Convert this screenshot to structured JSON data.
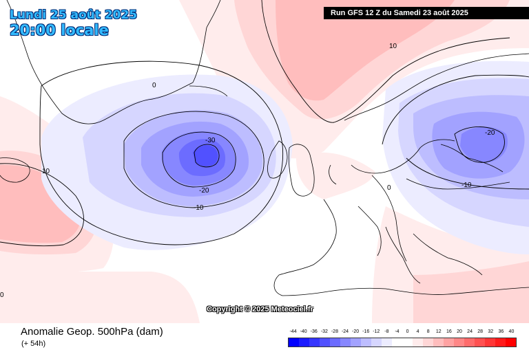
{
  "header": {
    "date_line": "Lundi 25 août 2025",
    "time_line": "20:00 locale",
    "run_banner": "Run GFS 12 Z du Samedi 23 août 2025"
  },
  "copyright": "Copyright © 2025 Meteociel.fr",
  "footer": {
    "parameter_title": "Anomalie Geop. 500hPa (dam)",
    "lead_time": "(+ 54h)"
  },
  "contour_labels": [
    {
      "id": "contour-label-10-north",
      "text": "10"
    },
    {
      "id": "contour-label-0-greenland",
      "text": "0"
    },
    {
      "id": "contour-label-minus30",
      "text": "-30"
    },
    {
      "id": "contour-label-minus20-atlantic",
      "text": "-20"
    },
    {
      "id": "contour-label-minus10-atlantic",
      "text": "-10"
    },
    {
      "id": "contour-label-10-west",
      "text": "10"
    },
    {
      "id": "contour-label-minus20-russia",
      "text": "-20"
    },
    {
      "id": "contour-label-minus10-russia",
      "text": "-10"
    },
    {
      "id": "contour-label-0-europe",
      "text": "0"
    },
    {
      "id": "contour-label-0-left-edge",
      "text": "0"
    }
  ],
  "color_scale": {
    "labels": [
      "-44",
      "-40",
      "-36",
      "-32",
      "-28",
      "-24",
      "-20",
      "-16",
      "-12",
      "-8",
      "-4",
      "0",
      "4",
      "8",
      "12",
      "16",
      "20",
      "24",
      "28",
      "32",
      "36",
      "40"
    ],
    "colors": [
      "#0000ff",
      "#1b1bff",
      "#3636ff",
      "#5151ff",
      "#6c6cff",
      "#8787ff",
      "#a2a2ff",
      "#bdbdff",
      "#d6d6ff",
      "#ececff",
      "#ffffff",
      "#ffffff",
      "#ffecec",
      "#ffd6d6",
      "#ffbdbd",
      "#ffa2a2",
      "#ff8787",
      "#ff6c6c",
      "#ff5151",
      "#ff3636",
      "#ff1b1b",
      "#ff0000"
    ]
  },
  "colors": {
    "title_text": "#33bbff",
    "low_anomaly": "#6c6cff",
    "high_anomaly": "#ffbdbd",
    "contour": "#000000"
  }
}
